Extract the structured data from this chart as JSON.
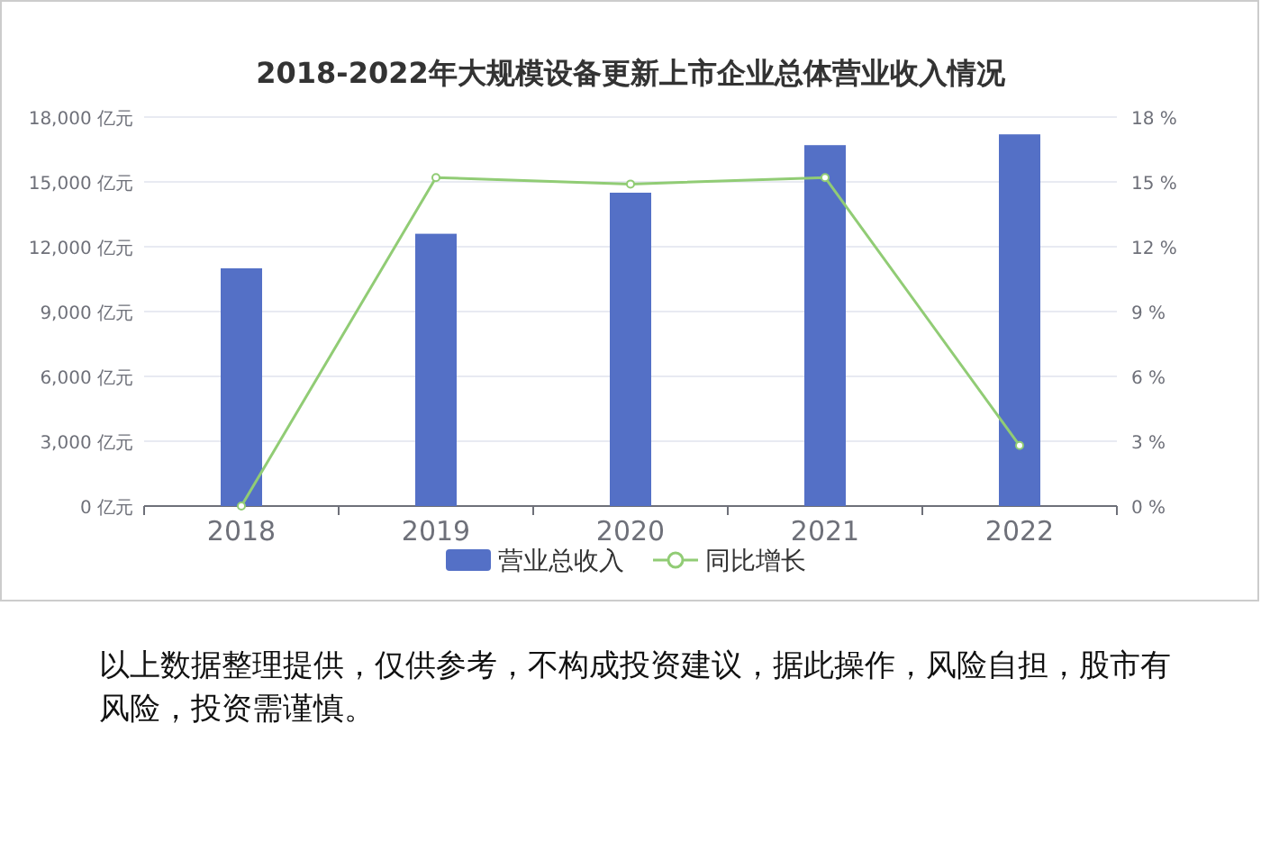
{
  "chart_data": {
    "type": "bar",
    "title": "2018-2022年大规模设备更新上市企业总体营业收入情况",
    "categories": [
      "2018",
      "2019",
      "2020",
      "2021",
      "2022"
    ],
    "series": [
      {
        "name": "营业总收入",
        "color": "#5470c6",
        "values": [
          11000,
          12600,
          14500,
          16700,
          17200
        ]
      },
      {
        "name": "同比增长",
        "type": "line",
        "axis": "y2",
        "color": "#91cc75",
        "marker": "circle",
        "values": [
          0,
          15.2,
          14.9,
          15.2,
          2.8
        ]
      }
    ],
    "ylim": [
      0,
      18000
    ],
    "yticks": [
      {
        "value": 0,
        "label": "0 亿元"
      },
      {
        "value": 3000,
        "label": "3,000 亿元"
      },
      {
        "value": 6000,
        "label": "6,000 亿元"
      },
      {
        "value": 9000,
        "label": "9,000 亿元"
      },
      {
        "value": 12000,
        "label": "12,000 亿元"
      },
      {
        "value": 15000,
        "label": "15,000 亿元"
      },
      {
        "value": 18000,
        "label": "18,000 亿元"
      }
    ],
    "y2lim": [
      0,
      18
    ],
    "y2ticks": [
      {
        "value": 0,
        "label": "0 %"
      },
      {
        "value": 3,
        "label": "3 %"
      },
      {
        "value": 6,
        "label": "6 %"
      },
      {
        "value": 9,
        "label": "9 %"
      },
      {
        "value": 12,
        "label": "12 %"
      },
      {
        "value": 15,
        "label": "15 %"
      },
      {
        "value": 18,
        "label": "18 %"
      }
    ],
    "grid": "y",
    "legend": "bottom",
    "annotations": [
      "以上数据整理提供，仅供参考，不构成投资建议，据此操作，风险自担，股市有风险，投资需谨慎。"
    ]
  }
}
